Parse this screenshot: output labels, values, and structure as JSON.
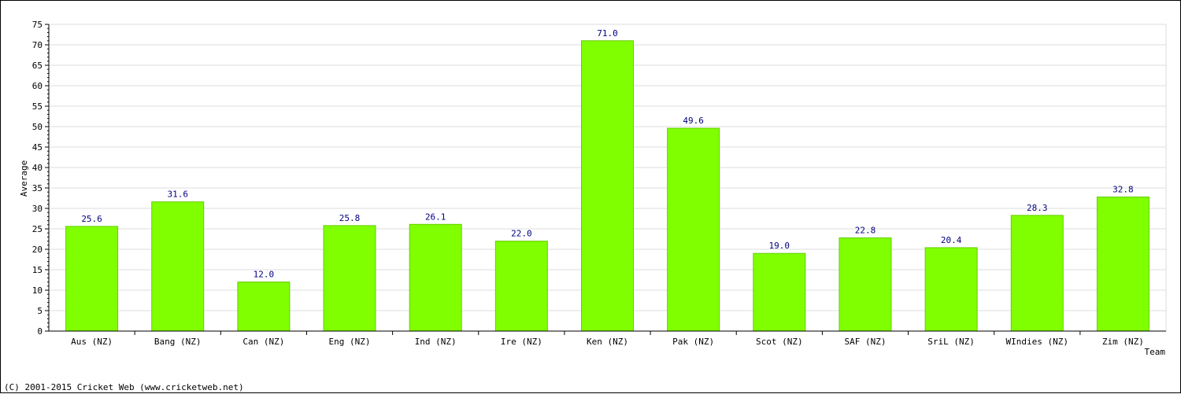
{
  "chart_data": {
    "type": "bar",
    "title": "",
    "xlabel": "Team",
    "ylabel": "Average",
    "categories": [
      "Aus (NZ)",
      "Bang (NZ)",
      "Can (NZ)",
      "Eng (NZ)",
      "Ind (NZ)",
      "Ire (NZ)",
      "Ken (NZ)",
      "Pak (NZ)",
      "Scot (NZ)",
      "SAF (NZ)",
      "SriL (NZ)",
      "WIndies (NZ)",
      "Zim (NZ)"
    ],
    "values": [
      25.6,
      31.6,
      12.0,
      25.8,
      26.1,
      22.0,
      71.0,
      49.6,
      19.0,
      22.8,
      20.4,
      28.3,
      32.8
    ],
    "value_labels": [
      "25.6",
      "31.6",
      "12.0",
      "25.8",
      "26.1",
      "22.0",
      "71.0",
      "49.6",
      "19.0",
      "22.8",
      "20.4",
      "28.3",
      "32.8"
    ],
    "ylim": [
      0,
      75
    ],
    "yticks": [
      "0",
      "5",
      "10",
      "15",
      "20",
      "25",
      "30",
      "35",
      "40",
      "45",
      "50",
      "55",
      "60",
      "65",
      "70",
      "75"
    ],
    "grid": true,
    "legend": "none",
    "bar_color": "#80ff00",
    "value_label_color": "#000080",
    "grid_color": "#dddddd"
  },
  "footer": {
    "copyright": "(C) 2001-2015 Cricket Web (www.cricketweb.net)"
  }
}
